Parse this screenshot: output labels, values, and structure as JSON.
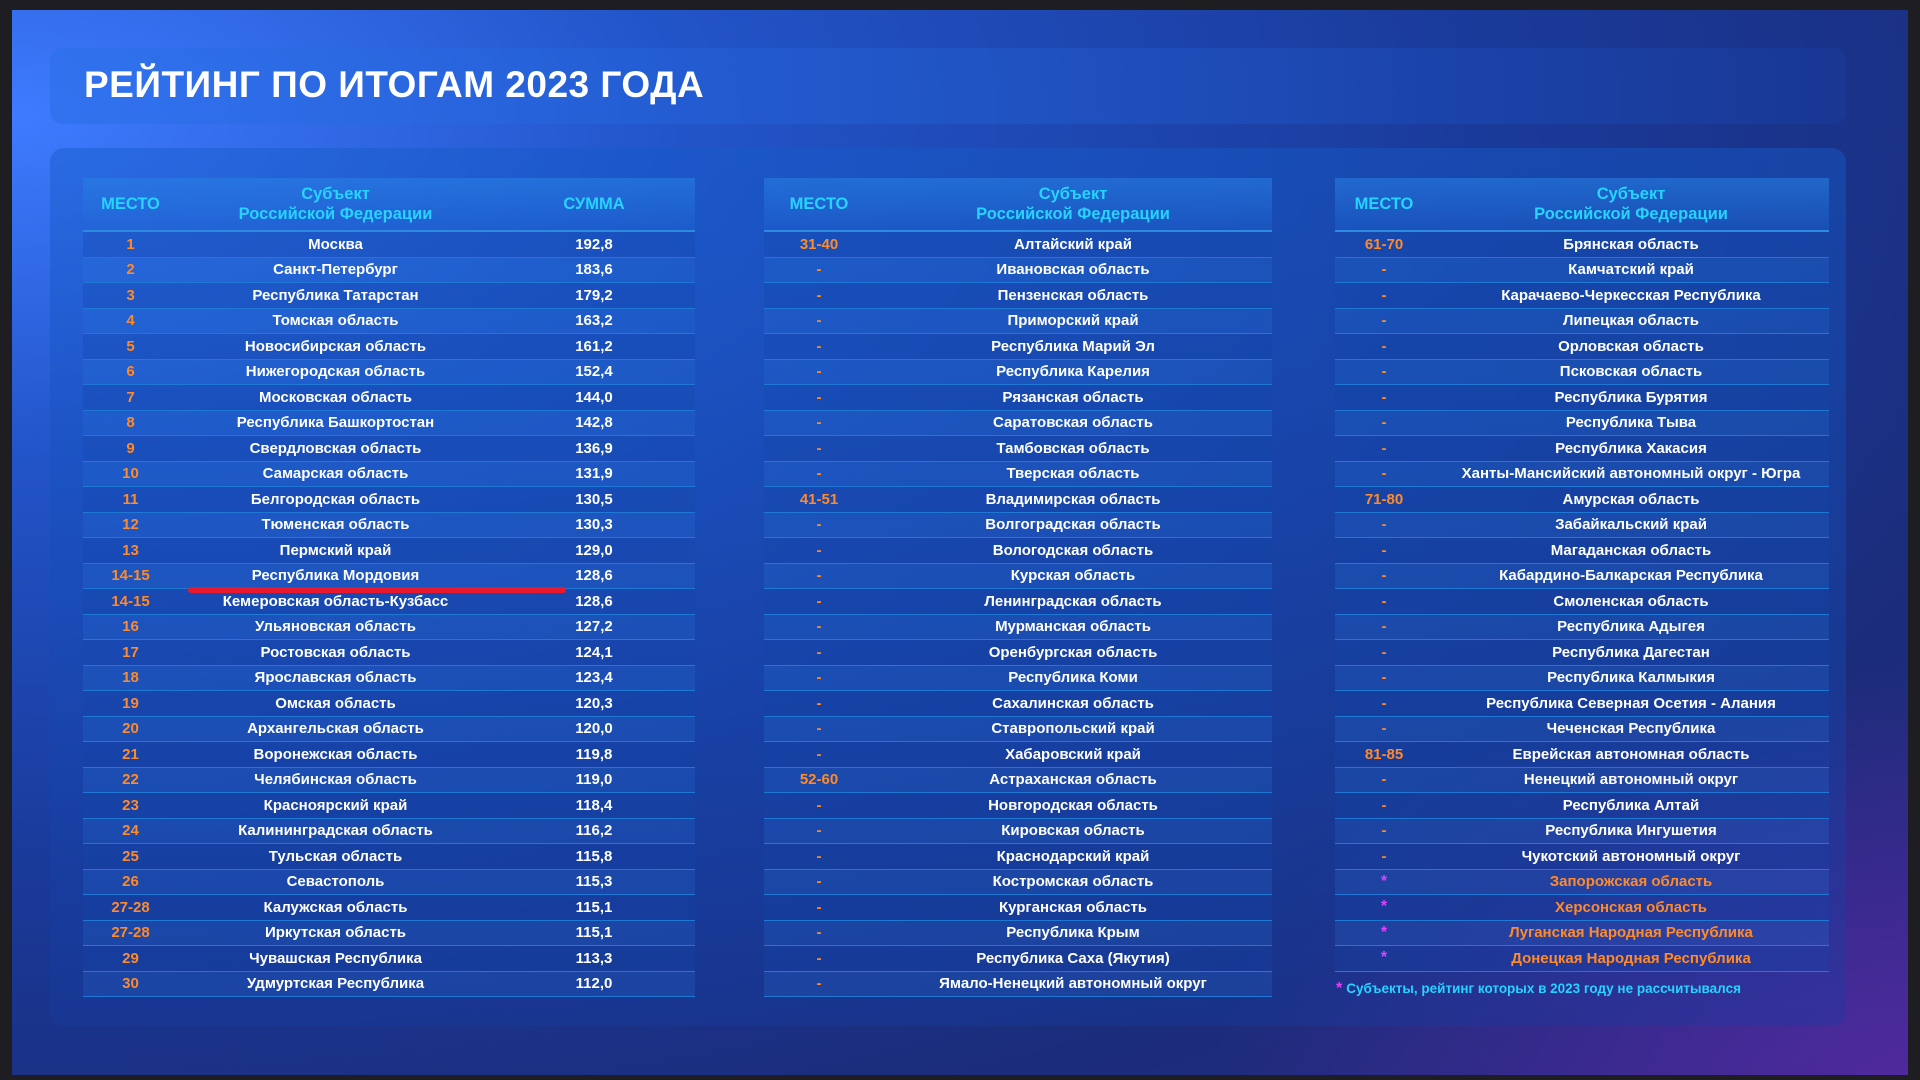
{
  "title": "РЕЙТИНГ ПО ИТОГАМ 2023 ГОДА",
  "headers": {
    "place": "МЕСТО",
    "subject": "Субъект\nРоссийской Федерации",
    "sum": "СУММА"
  },
  "table1": [
    {
      "place": "1",
      "name": "Москва",
      "sum": "192,8"
    },
    {
      "place": "2",
      "name": "Санкт-Петербург",
      "sum": "183,6"
    },
    {
      "place": "3",
      "name": "Республика Татарстан",
      "sum": "179,2"
    },
    {
      "place": "4",
      "name": "Томская область",
      "sum": "163,2"
    },
    {
      "place": "5",
      "name": "Новосибирская область",
      "sum": "161,2"
    },
    {
      "place": "6",
      "name": "Нижегородская область",
      "sum": "152,4"
    },
    {
      "place": "7",
      "name": "Московская область",
      "sum": "144,0"
    },
    {
      "place": "8",
      "name": "Республика Башкортостан",
      "sum": "142,8"
    },
    {
      "place": "9",
      "name": "Свердловская область",
      "sum": "136,9"
    },
    {
      "place": "10",
      "name": "Самарская область",
      "sum": "131,9"
    },
    {
      "place": "11",
      "name": "Белгородская область",
      "sum": "130,5"
    },
    {
      "place": "12",
      "name": "Тюменская область",
      "sum": "130,3"
    },
    {
      "place": "13",
      "name": "Пермский край",
      "sum": "129,0"
    },
    {
      "place": "14-15",
      "name": "Республика Мордовия",
      "sum": "128,6"
    },
    {
      "place": "14-15",
      "name": "Кемеровская область-Кузбасс",
      "sum": "128,6"
    },
    {
      "place": "16",
      "name": "Ульяновская область",
      "sum": "127,2"
    },
    {
      "place": "17",
      "name": "Ростовская область",
      "sum": "124,1"
    },
    {
      "place": "18",
      "name": "Ярославская область",
      "sum": "123,4"
    },
    {
      "place": "19",
      "name": "Омская область",
      "sum": "120,3"
    },
    {
      "place": "20",
      "name": "Архангельская область",
      "sum": "120,0"
    },
    {
      "place": "21",
      "name": "Воронежская область",
      "sum": "119,8"
    },
    {
      "place": "22",
      "name": "Челябинская область",
      "sum": "119,0"
    },
    {
      "place": "23",
      "name": "Красноярский край",
      "sum": "118,4"
    },
    {
      "place": "24",
      "name": "Калининградская область",
      "sum": "116,2"
    },
    {
      "place": "25",
      "name": "Тульская область",
      "sum": "115,8"
    },
    {
      "place": "26",
      "name": "Севастополь",
      "sum": "115,3"
    },
    {
      "place": "27-28",
      "name": "Калужская область",
      "sum": "115,1"
    },
    {
      "place": "27-28",
      "name": "Иркутская область",
      "sum": "115,1"
    },
    {
      "place": "29",
      "name": "Чувашская Республика",
      "sum": "113,3"
    },
    {
      "place": "30",
      "name": "Удмуртская Республика",
      "sum": "112,0"
    }
  ],
  "table2": [
    {
      "place": "31-40",
      "name": "Алтайский край"
    },
    {
      "place": "-",
      "name": "Ивановская область"
    },
    {
      "place": "-",
      "name": "Пензенская область"
    },
    {
      "place": "-",
      "name": "Приморский край"
    },
    {
      "place": "-",
      "name": "Республика Марий Эл"
    },
    {
      "place": "-",
      "name": "Республика Карелия"
    },
    {
      "place": "-",
      "name": "Рязанская область"
    },
    {
      "place": "-",
      "name": "Саратовская область"
    },
    {
      "place": "-",
      "name": "Тамбовская область"
    },
    {
      "place": "-",
      "name": "Тверская область"
    },
    {
      "place": "41-51",
      "name": "Владимирская область"
    },
    {
      "place": "-",
      "name": "Волгоградская область"
    },
    {
      "place": "-",
      "name": "Вологодская область"
    },
    {
      "place": "-",
      "name": "Курская область"
    },
    {
      "place": "-",
      "name": "Ленинградская область"
    },
    {
      "place": "-",
      "name": "Мурманская область"
    },
    {
      "place": "-",
      "name": "Оренбургская область"
    },
    {
      "place": "-",
      "name": "Республика Коми"
    },
    {
      "place": "-",
      "name": "Сахалинская область"
    },
    {
      "place": "-",
      "name": "Ставропольский край"
    },
    {
      "place": "-",
      "name": "Хабаровский край"
    },
    {
      "place": "52-60",
      "name": "Астраханская область"
    },
    {
      "place": "-",
      "name": "Новгородская область"
    },
    {
      "place": "-",
      "name": "Кировская область"
    },
    {
      "place": "-",
      "name": "Краснодарский край"
    },
    {
      "place": "-",
      "name": "Костромская область"
    },
    {
      "place": "-",
      "name": "Курганская область"
    },
    {
      "place": "-",
      "name": "Республика Крым"
    },
    {
      "place": "-",
      "name": "Республика Саха (Якутия)"
    },
    {
      "place": "-",
      "name": "Ямало-Ненецкий автономный округ"
    }
  ],
  "table3": [
    {
      "place": "61-70",
      "name": "Брянская область"
    },
    {
      "place": "-",
      "name": "Камчатский край"
    },
    {
      "place": "-",
      "name": "Карачаево-Черкесская Республика"
    },
    {
      "place": "-",
      "name": "Липецкая область"
    },
    {
      "place": "-",
      "name": "Орловская область"
    },
    {
      "place": "-",
      "name": "Псковская область"
    },
    {
      "place": "-",
      "name": "Республика Бурятия"
    },
    {
      "place": "-",
      "name": "Республика Тыва"
    },
    {
      "place": "-",
      "name": "Республика Хакасия"
    },
    {
      "place": "-",
      "name": "Ханты-Мансийский автономный округ - Югра"
    },
    {
      "place": "71-80",
      "name": "Амурская область"
    },
    {
      "place": "-",
      "name": "Забайкальский край"
    },
    {
      "place": "-",
      "name": "Магаданская область"
    },
    {
      "place": "-",
      "name": "Кабардино-Балкарская Республика"
    },
    {
      "place": "-",
      "name": "Смоленская область"
    },
    {
      "place": "-",
      "name": "Республика Адыгея"
    },
    {
      "place": "-",
      "name": "Республика Дагестан"
    },
    {
      "place": "-",
      "name": "Республика Калмыкия"
    },
    {
      "place": "-",
      "name": "Республика Северная Осетия - Алания"
    },
    {
      "place": "-",
      "name": "Чеченская Республика"
    },
    {
      "place": "81-85",
      "name": "Еврейская автономная область"
    },
    {
      "place": "-",
      "name": "Ненецкий автономный округ"
    },
    {
      "place": "-",
      "name": "Республика Алтай"
    },
    {
      "place": "-",
      "name": "Республика Ингушетия"
    },
    {
      "place": "-",
      "name": "Чукотский автономный округ"
    },
    {
      "place": "*",
      "name": "Запорожская область",
      "unrated": true
    },
    {
      "place": "*",
      "name": "Херсонская область",
      "unrated": true
    },
    {
      "place": "*",
      "name": "Луганская Народная Республика",
      "unrated": true
    },
    {
      "place": "*",
      "name": "Донецкая Народная Республика",
      "unrated": true
    }
  ],
  "footnote": {
    "mark": "*",
    "text": "Субъекты, рейтинг которых в 2023 году не рассчитывался"
  },
  "colors": {
    "accent_cyan": "#27d3ff",
    "place_orange": "#ff8a2a",
    "star_magenta": "#e040ff",
    "highlight_red": "#e8192c"
  }
}
